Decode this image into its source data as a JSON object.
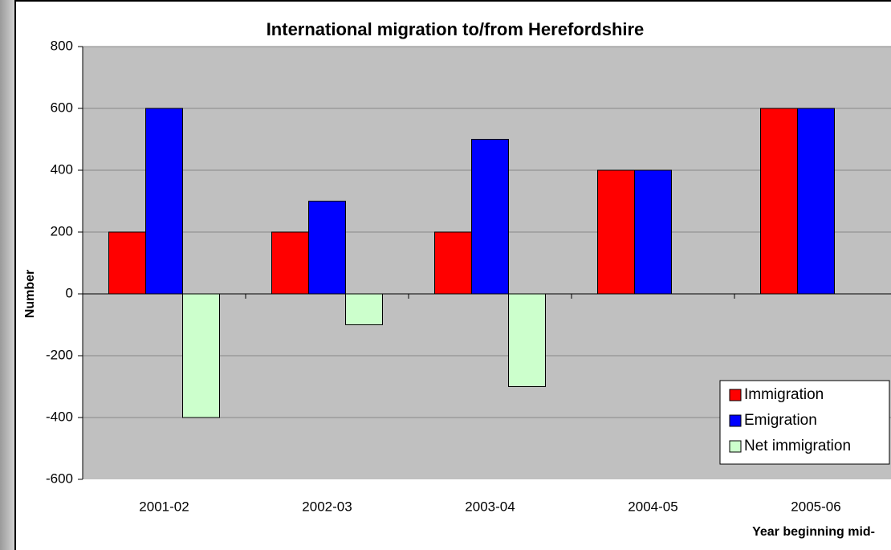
{
  "chart_data": {
    "type": "bar",
    "title": "International migration to/from Herefordshire",
    "y_label": "Number",
    "x_label": "Year beginning mid-",
    "categories": [
      "2001-02",
      "2002-03",
      "2003-04",
      "2004-05",
      "2005-06"
    ],
    "series": [
      {
        "name": "Immigration",
        "color": "#ff0000",
        "values": [
          200,
          200,
          200,
          400,
          600
        ]
      },
      {
        "name": "Emigration",
        "color": "#0000ff",
        "values": [
          600,
          300,
          500,
          400,
          600
        ]
      },
      {
        "name": "Net immigration",
        "color": "#ccffcc",
        "values": [
          -400,
          -100,
          -300,
          0,
          0
        ]
      }
    ],
    "ylim": [
      -600,
      800
    ],
    "yticks": [
      -600,
      -400,
      -200,
      0,
      200,
      400,
      600,
      800
    ],
    "grid": true,
    "legend": "lower right"
  }
}
